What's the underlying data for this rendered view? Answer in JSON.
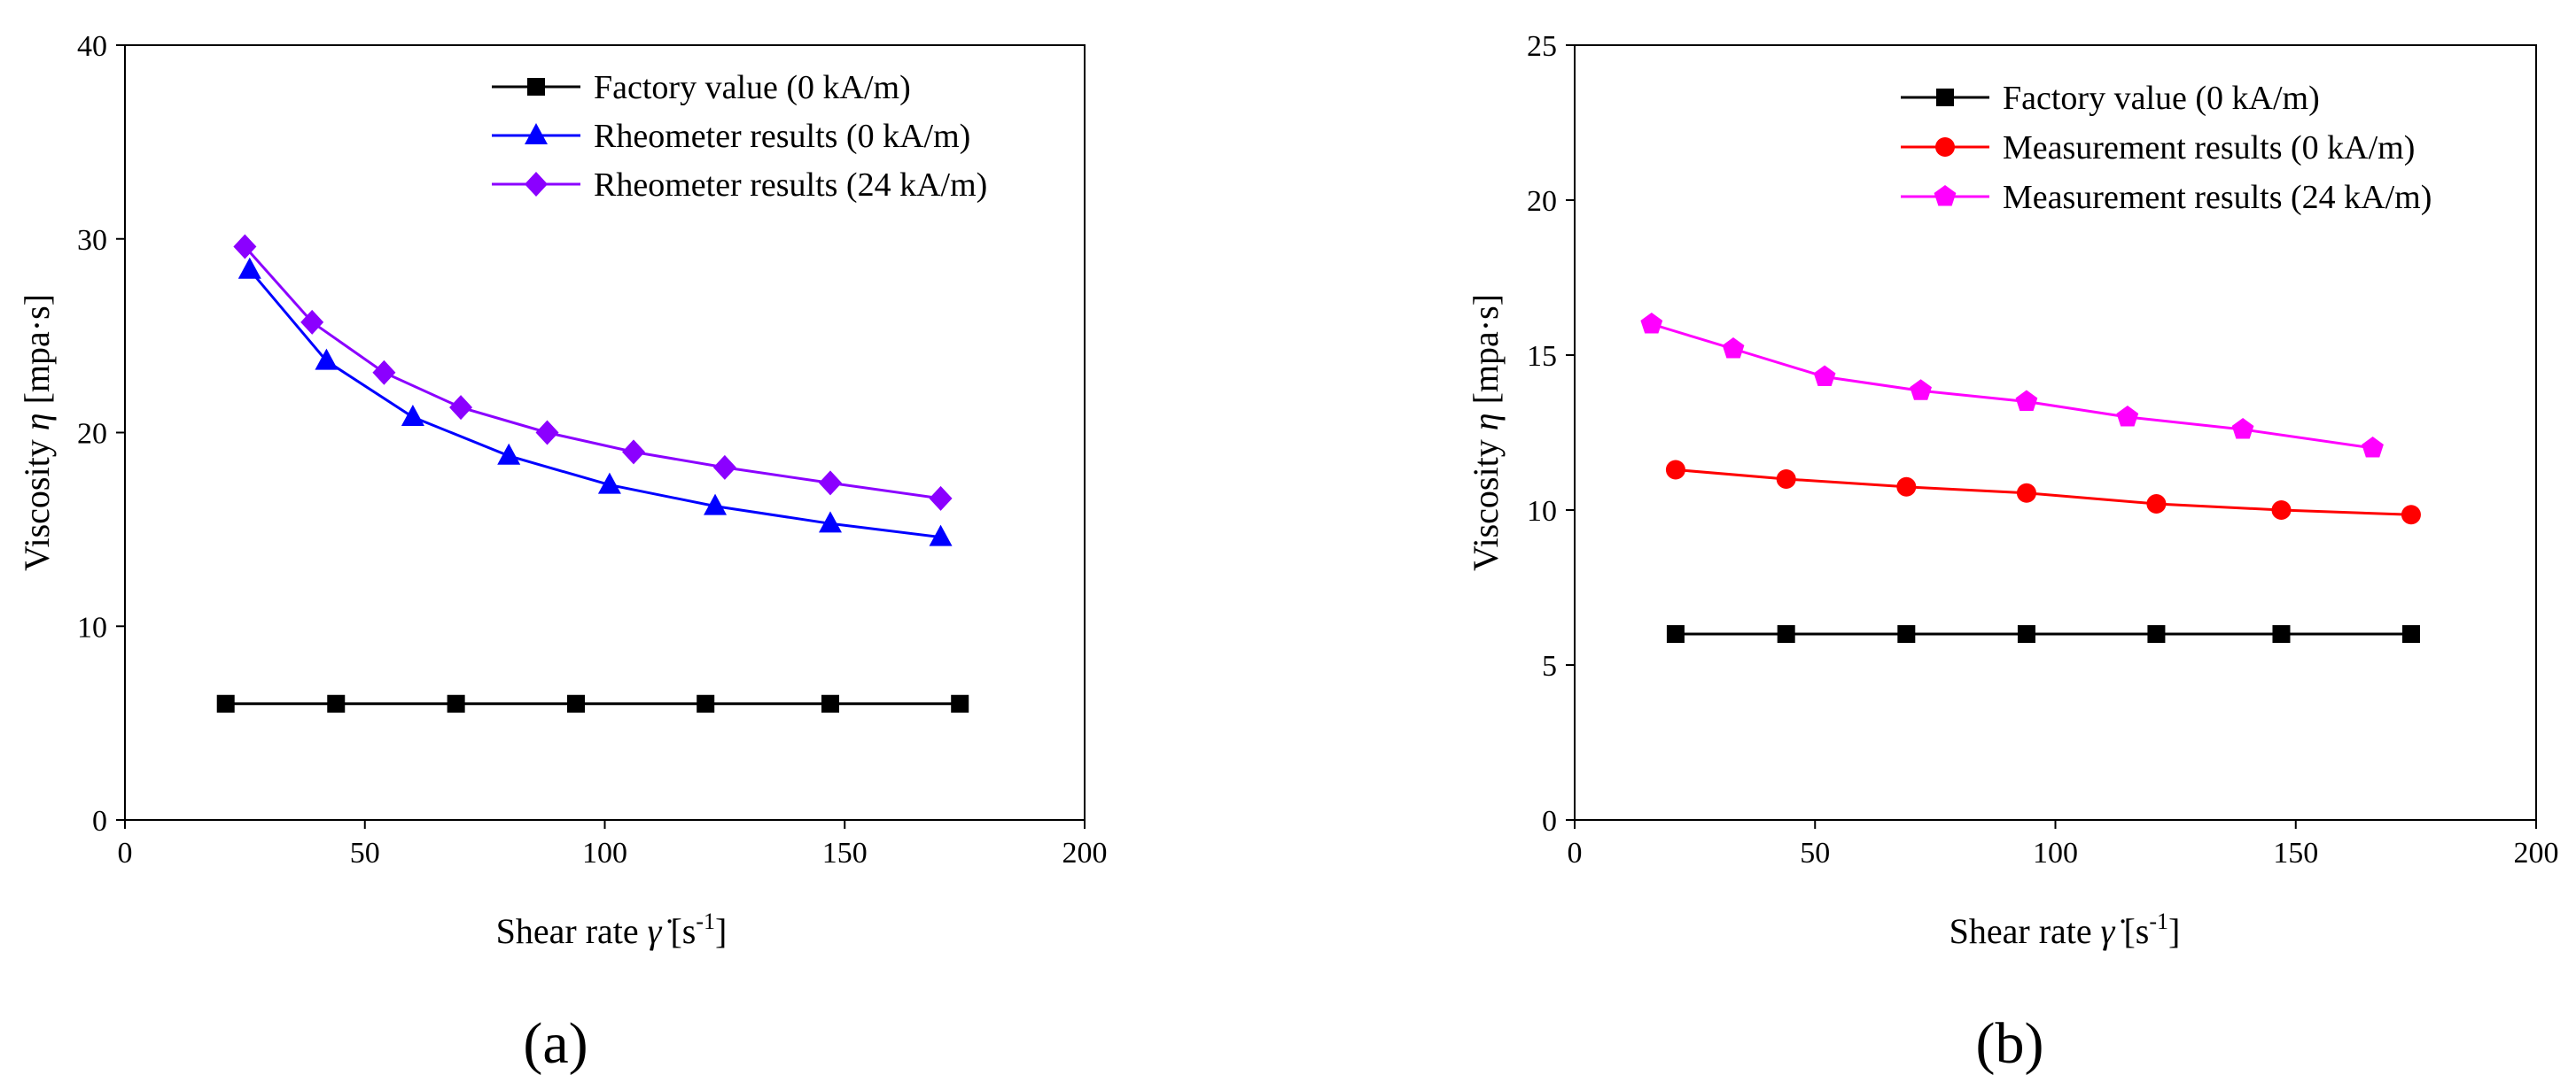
{
  "chart_data": [
    {
      "type": "line",
      "panel_label": "(a)",
      "xlabel": {
        "prefix": "Shear rate ",
        "symbol": "γ",
        "unit_open": " [s",
        "unit_exp": "-1",
        "unit_close": "]"
      },
      "ylabel": {
        "prefix": "Viscosity ",
        "symbol": "η",
        "unit": " [mpa·s]"
      },
      "xlim": [
        0,
        200
      ],
      "ylim": [
        0,
        40
      ],
      "xticks": [
        0,
        50,
        100,
        150,
        200
      ],
      "yticks": [
        0,
        10,
        20,
        30,
        40
      ],
      "legend_position": "top-right",
      "series": [
        {
          "name": "Factory value (0 kA/m)",
          "color": "#000000",
          "marker": "square",
          "x": [
            21,
            44,
            69,
            94,
            121,
            147,
            174
          ],
          "y": [
            6,
            6,
            6,
            6,
            6,
            6,
            6
          ]
        },
        {
          "name": "Rheometer results (0 kA/m)",
          "color": "#0000ff",
          "marker": "triangle",
          "x": [
            26,
            42,
            60,
            80,
            101,
            123,
            147,
            170
          ],
          "y": [
            28.4,
            23.7,
            20.8,
            18.8,
            17.3,
            16.2,
            15.3,
            14.6
          ]
        },
        {
          "name": "Rheometer results (24 kA/m)",
          "color": "#8b00ff",
          "marker": "diamond",
          "x": [
            25,
            39,
            54,
            70,
            88,
            106,
            125,
            147,
            170
          ],
          "y": [
            29.6,
            25.7,
            23.1,
            21.3,
            20.0,
            19.0,
            18.2,
            17.4,
            16.6
          ]
        }
      ]
    },
    {
      "type": "line",
      "panel_label": "(b)",
      "xlabel": {
        "prefix": "Shear rate ",
        "symbol": "γ",
        "unit_open": " [s",
        "unit_exp": "-1",
        "unit_close": "]"
      },
      "ylabel": {
        "prefix": "Viscosity ",
        "symbol": "η",
        "unit": " [mpa·s]"
      },
      "xlim": [
        0,
        200
      ],
      "ylim": [
        0,
        25
      ],
      "xticks": [
        0,
        50,
        100,
        150,
        200
      ],
      "yticks": [
        0,
        5,
        10,
        15,
        20,
        25
      ],
      "legend_position": "top-right",
      "series": [
        {
          "name": "Factory value (0 kA/m)",
          "color": "#000000",
          "marker": "square",
          "x": [
            21,
            44,
            69,
            94,
            121,
            147,
            174
          ],
          "y": [
            6,
            6,
            6,
            6,
            6,
            6,
            6
          ]
        },
        {
          "name": "Measurement results (0 kA/m)",
          "color": "#ff0000",
          "marker": "circle",
          "x": [
            21,
            44,
            69,
            94,
            121,
            147,
            174
          ],
          "y": [
            11.3,
            11.0,
            10.75,
            10.55,
            10.2,
            10.0,
            9.85
          ]
        },
        {
          "name": "Measurement results (24 kA/m)",
          "color": "#ff00ff",
          "marker": "pentagon",
          "x": [
            16,
            33,
            52,
            72,
            94,
            115,
            139,
            166
          ],
          "y": [
            16.0,
            15.2,
            14.3,
            13.85,
            13.5,
            13.0,
            12.6,
            12.0
          ]
        }
      ]
    }
  ]
}
